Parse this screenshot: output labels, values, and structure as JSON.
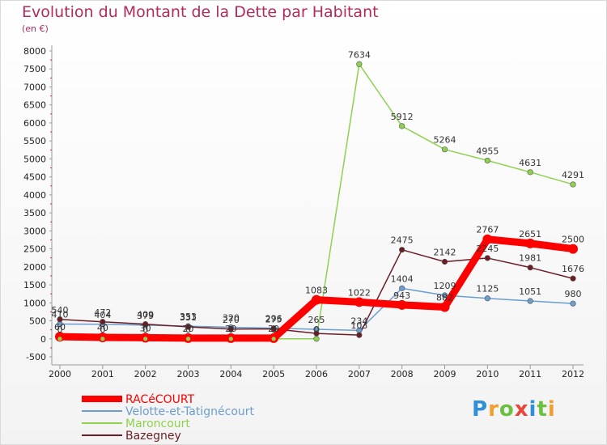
{
  "chart_data": {
    "type": "line",
    "title": "Evolution du Montant de la Dette par Habitant",
    "subtitle": "(en €)",
    "x": [
      "2000",
      "2001",
      "2002",
      "2003",
      "2004",
      "2005",
      "2006",
      "2007",
      "2008",
      "2009",
      "2010",
      "2011",
      "2012"
    ],
    "ylim": [
      -500,
      8000
    ],
    "yticks": [
      "-500",
      "0",
      "500",
      "1000",
      "1500",
      "2000",
      "2500",
      "3000",
      "3500",
      "4000",
      "4500",
      "5000",
      "5500",
      "6000",
      "6500",
      "7000",
      "7500",
      "8000"
    ],
    "grid": false,
    "legend_position": "bottom-left",
    "series": [
      {
        "name": "RACéCOURT",
        "color": "#ff0000",
        "width": 9,
        "values": [
          60,
          40,
          30,
          20,
          20,
          20,
          1083,
          1022,
          943,
          882,
          2767,
          2651,
          2500
        ],
        "labels": [
          "60",
          "40",
          "30",
          "20",
          "20",
          "20",
          "1083",
          "1022",
          "943",
          "882",
          "2767",
          "2651",
          "2500"
        ]
      },
      {
        "name": "Velotte-et-Tatignécourt",
        "color": "#6b9ecf",
        "width": 1.5,
        "values": [
          410,
          404,
          379,
          353,
          320,
          296,
          265,
          234,
          1404,
          1209,
          1125,
          1051,
          980
        ],
        "labels": [
          "410",
          "404",
          "379",
          "353",
          "320",
          "296",
          "265",
          "234",
          "1404",
          "1209",
          "1125",
          "1051",
          "980"
        ]
      },
      {
        "name": "Maroncourt",
        "color": "#8fd14f",
        "width": 1.5,
        "values": [
          0,
          0,
          0,
          0,
          0,
          0,
          0,
          7634,
          5912,
          5264,
          4955,
          4631,
          4291
        ],
        "labels": [
          "0",
          "0",
          "0",
          "0",
          "0",
          "0",
          "0",
          "7634",
          "5912",
          "5264",
          "4955",
          "4631",
          "4291"
        ]
      },
      {
        "name": "Bazegney",
        "color": "#6b1d26",
        "width": 1.5,
        "values": [
          540,
          472,
          409,
          331,
          270,
          275,
          150,
          103,
          2475,
          2142,
          2245,
          1981,
          1676
        ],
        "labels": [
          "540",
          "472",
          "409",
          "331",
          "270",
          "275",
          "",
          "103",
          "2475",
          "2142",
          "2245",
          "1981",
          "1676"
        ]
      }
    ]
  },
  "logo": {
    "letters": [
      "P",
      "r",
      "o",
      "x",
      "i",
      "t",
      "i"
    ],
    "colors": [
      "#2f8fd8",
      "#f0a030",
      "#6cc040",
      "#e8463a",
      "#2f8fd8",
      "#6cc040",
      "#f0a030"
    ]
  }
}
